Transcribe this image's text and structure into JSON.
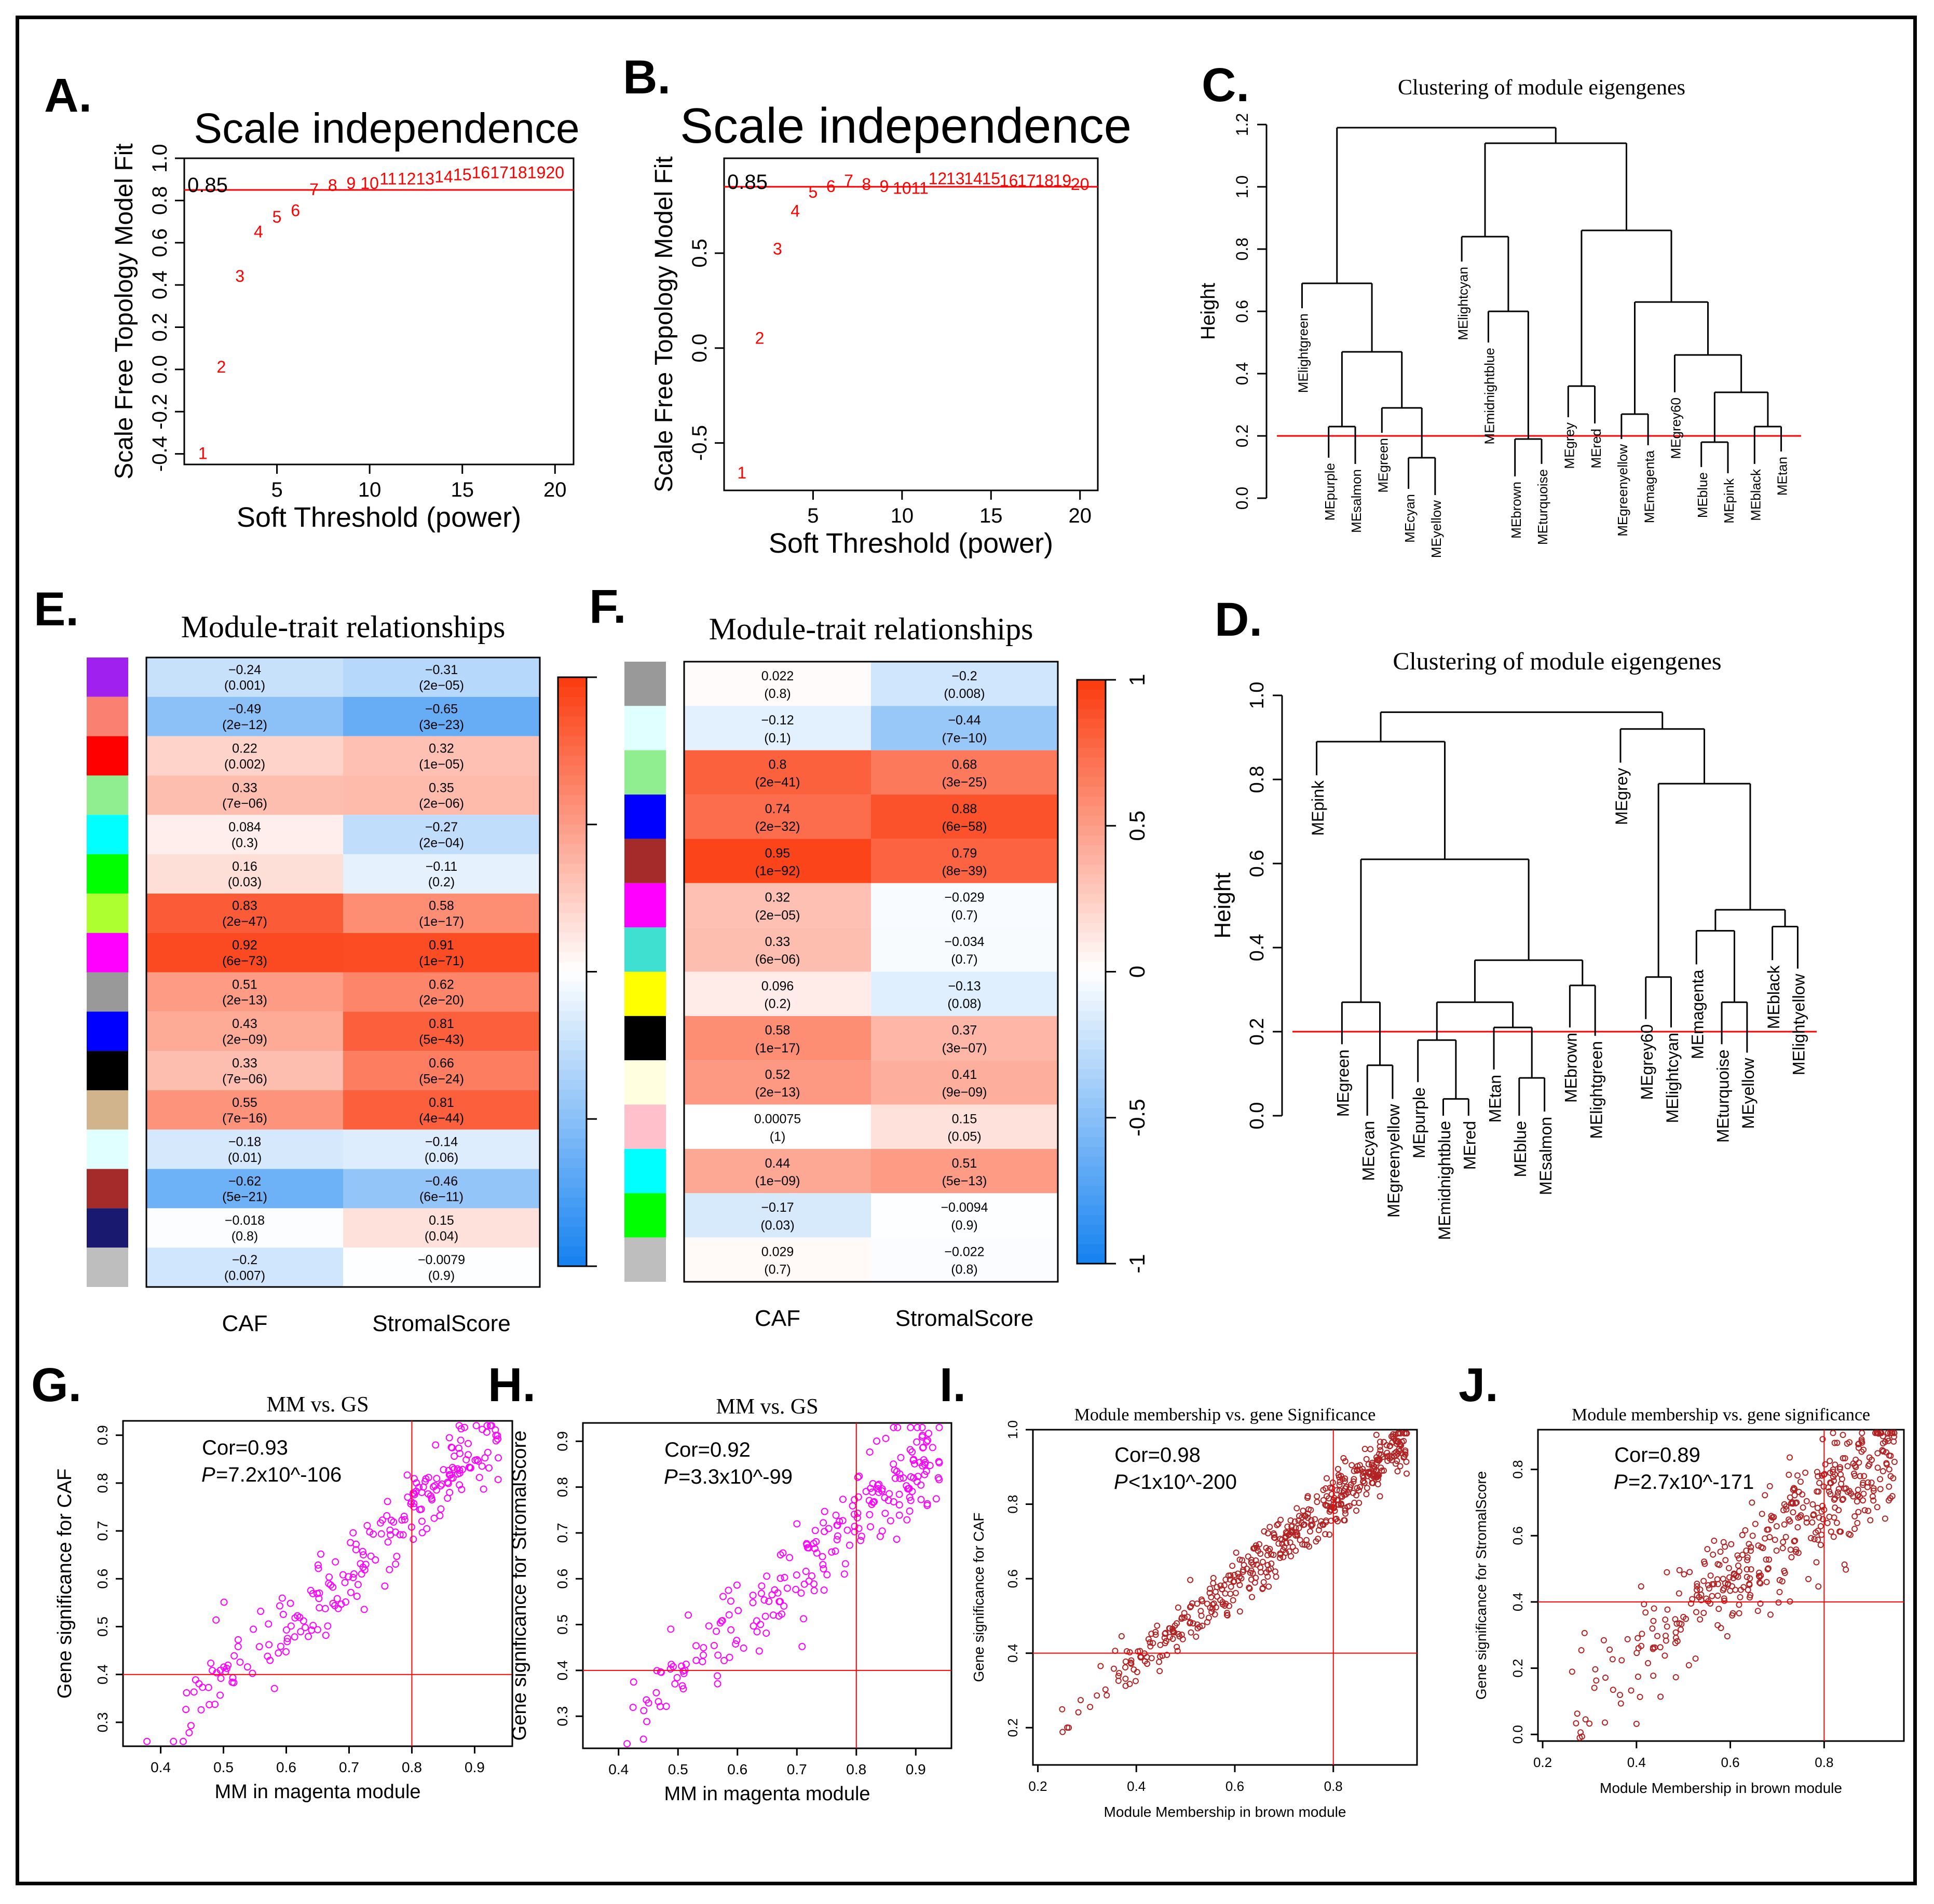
{
  "colors": {
    "red": "#ff0000",
    "magenta": "#ff00ff",
    "brown": "#b22222",
    "hot": "#fb3a0e",
    "mid": "#ffffff",
    "cold": "#1481f0"
  },
  "chart_data": [
    {
      "id": "A",
      "type": "scatter",
      "panel_label": "A.",
      "title": "Scale independence",
      "xlabel": "Soft Threshold (power)",
      "ylabel": "Scale Free Topology Model Fit",
      "xlim": [
        0,
        21
      ],
      "ylim": [
        -0.45,
        1.0
      ],
      "xticks": [
        5,
        10,
        15,
        20
      ],
      "yticks": [
        -0.4,
        -0.2,
        0.0,
        0.2,
        0.4,
        0.6,
        0.8,
        1.0
      ],
      "ytick_labels": [
        "-0.4",
        "-0.2",
        "0.0",
        "0.2",
        "0.4",
        "0.6",
        "0.8",
        "1.0"
      ],
      "threshold": 0.85,
      "threshold_label": "0.85",
      "points": [
        [
          1,
          -0.4
        ],
        [
          2,
          0.01
        ],
        [
          3,
          0.44
        ],
        [
          4,
          0.65
        ],
        [
          5,
          0.72
        ],
        [
          6,
          0.75
        ],
        [
          7,
          0.85
        ],
        [
          8,
          0.87
        ],
        [
          9,
          0.88
        ],
        [
          10,
          0.88
        ],
        [
          11,
          0.9
        ],
        [
          12,
          0.9
        ],
        [
          13,
          0.9
        ],
        [
          14,
          0.91
        ],
        [
          15,
          0.92
        ],
        [
          16,
          0.93
        ],
        [
          17,
          0.93
        ],
        [
          18,
          0.93
        ],
        [
          19,
          0.93
        ],
        [
          20,
          0.93
        ]
      ]
    },
    {
      "id": "B",
      "type": "scatter",
      "panel_label": "B.",
      "title": "Scale independence",
      "xlabel": "Soft Threshold (power)",
      "ylabel": "Scale Free Topology Model Fit",
      "xlim": [
        0,
        21
      ],
      "ylim": [
        -0.75,
        1.0
      ],
      "xticks": [
        5,
        10,
        15,
        20
      ],
      "yticks": [
        -0.5,
        0.0,
        0.5
      ],
      "ytick_labels": [
        "-0.5",
        "0.0",
        "0.5"
      ],
      "threshold": 0.85,
      "threshold_label": "0.85",
      "points": [
        [
          1,
          -0.66
        ],
        [
          2,
          0.05
        ],
        [
          3,
          0.52
        ],
        [
          4,
          0.72
        ],
        [
          5,
          0.82
        ],
        [
          6,
          0.85
        ],
        [
          7,
          0.88
        ],
        [
          8,
          0.86
        ],
        [
          9,
          0.85
        ],
        [
          10,
          0.84
        ],
        [
          11,
          0.84
        ],
        [
          12,
          0.89
        ],
        [
          13,
          0.89
        ],
        [
          14,
          0.89
        ],
        [
          15,
          0.89
        ],
        [
          16,
          0.88
        ],
        [
          17,
          0.88
        ],
        [
          18,
          0.88
        ],
        [
          19,
          0.88
        ],
        [
          20,
          0.86
        ]
      ]
    },
    {
      "id": "C",
      "type": "dendrogram",
      "panel_label": "C.",
      "title": "Clustering of module eigengenes",
      "ylabel": "Height",
      "ylim": [
        0,
        1.2
      ],
      "yticks": [
        0.0,
        0.2,
        0.4,
        0.6,
        0.8,
        1.0,
        1.2
      ],
      "ytick_labels": [
        "0.0",
        "0.2",
        "0.4",
        "0.6",
        "0.8",
        "1.0",
        "1.2"
      ],
      "cut_height": 0.2,
      "leaves": [
        "MElightgreen",
        "MEpurple",
        "MEsalmon",
        "MEgreen",
        "MEcyan",
        "MEyellow",
        "MElightcyan",
        "MEmidnightblue",
        "MEbrown",
        "MEturquoise",
        "MEgrey",
        "MEred",
        "MEgreenyellow",
        "MEmagenta",
        "MEgrey60",
        "MEblue",
        "MEpink",
        "MEblack",
        "MEtan"
      ],
      "merges": [
        [
          2,
          3,
          0.23
        ],
        [
          5,
          6,
          0.13
        ],
        [
          4,
          -2,
          0.29
        ],
        [
          -1,
          -3,
          0.47
        ],
        [
          1,
          -4,
          0.69
        ],
        [
          9,
          10,
          0.19
        ],
        [
          8,
          -6,
          0.6
        ],
        [
          7,
          -7,
          0.84
        ],
        [
          11,
          12,
          0.36
        ],
        [
          13,
          14,
          0.27
        ],
        [
          16,
          17,
          0.18
        ],
        [
          18,
          19,
          0.23
        ],
        [
          -11,
          -12,
          0.34
        ],
        [
          15,
          -13,
          0.46
        ],
        [
          -10,
          -14,
          0.63
        ],
        [
          -9,
          -15,
          0.86
        ],
        [
          -8,
          -16,
          1.14
        ],
        [
          -5,
          -17,
          1.19
        ]
      ]
    },
    {
      "id": "D",
      "type": "dendrogram",
      "panel_label": "D.",
      "title": "Clustering of module eigengenes",
      "ylabel": "Height",
      "ylim": [
        0,
        1.0
      ],
      "yticks": [
        0.0,
        0.2,
        0.4,
        0.6,
        0.8,
        1.0
      ],
      "ytick_labels": [
        "0.0",
        "0.2",
        "0.4",
        "0.6",
        "0.8",
        "1.0"
      ],
      "cut_height": 0.2,
      "leaves": [
        "MEpink",
        "MEgreen",
        "MEcyan",
        "MEgreenyellow",
        "MEpurple",
        "MEmidnightblue",
        "MEred",
        "MEtan",
        "MEblue",
        "MEsalmon",
        "MEbrown",
        "MElightgreen",
        "MEgrey",
        "MEgrey60",
        "MElightcyan",
        "MEmagenta",
        "MEturquoise",
        "MEyellow",
        "MEblack",
        "MElightyellow"
      ],
      "merges": [
        [
          3,
          4,
          0.12
        ],
        [
          2,
          -1,
          0.27
        ],
        [
          6,
          7,
          0.04
        ],
        [
          5,
          -3,
          0.18
        ],
        [
          9,
          10,
          0.09
        ],
        [
          8,
          -5,
          0.21
        ],
        [
          -4,
          -6,
          0.27
        ],
        [
          11,
          12,
          0.31
        ],
        [
          -7,
          -8,
          0.37
        ],
        [
          -2,
          -9,
          0.61
        ],
        [
          1,
          -10,
          0.89
        ],
        [
          14,
          15,
          0.33
        ],
        [
          17,
          18,
          0.27
        ],
        [
          16,
          -13,
          0.44
        ],
        [
          19,
          20,
          0.45
        ],
        [
          -14,
          -15,
          0.49
        ],
        [
          -12,
          -16,
          0.79
        ],
        [
          13,
          -17,
          0.92
        ],
        [
          -11,
          -18,
          0.96
        ]
      ]
    },
    {
      "id": "E",
      "type": "heatmap",
      "panel_label": "E.",
      "title": "Module-trait relationships",
      "columns": [
        "CAF",
        "StromalScore"
      ],
      "colorbar_range": [
        -1,
        1
      ],
      "colorbar_ticks": [],
      "colorbar_tick_labels": [],
      "row_colors": [
        "#a020f0",
        "#fa8072",
        "#ff0000",
        "#90ee90",
        "#00ffff",
        "#00ff00",
        "#adff2f",
        "#ff00ff",
        "#999999",
        "#0000ff",
        "#000000",
        "#d2b48c",
        "#e0ffff",
        "#a52a2a",
        "#191970",
        "#bebebe"
      ],
      "rows": [
        [
          {
            "r": "−0.24",
            "p": "(0.001)",
            "v": -0.24
          },
          {
            "r": "−0.31",
            "p": "(2e−05)",
            "v": -0.31
          }
        ],
        [
          {
            "r": "−0.49",
            "p": "(2e−12)",
            "v": -0.49
          },
          {
            "r": "−0.65",
            "p": "(3e−23)",
            "v": -0.65
          }
        ],
        [
          {
            "r": "0.22",
            "p": "(0.002)",
            "v": 0.22
          },
          {
            "r": "0.32",
            "p": "(1e−05)",
            "v": 0.32
          }
        ],
        [
          {
            "r": "0.33",
            "p": "(7e−06)",
            "v": 0.33
          },
          {
            "r": "0.35",
            "p": "(2e−06)",
            "v": 0.35
          }
        ],
        [
          {
            "r": "0.084",
            "p": "(0.3)",
            "v": 0.084
          },
          {
            "r": "−0.27",
            "p": "(2e−04)",
            "v": -0.27
          }
        ],
        [
          {
            "r": "0.16",
            "p": "(0.03)",
            "v": 0.16
          },
          {
            "r": "−0.11",
            "p": "(0.2)",
            "v": -0.11
          }
        ],
        [
          {
            "r": "0.83",
            "p": "(2e−47)",
            "v": 0.83
          },
          {
            "r": "0.58",
            "p": "(1e−17)",
            "v": 0.58
          }
        ],
        [
          {
            "r": "0.92",
            "p": "(6e−73)",
            "v": 0.92
          },
          {
            "r": "0.91",
            "p": "(1e−71)",
            "v": 0.91
          }
        ],
        [
          {
            "r": "0.51",
            "p": "(2e−13)",
            "v": 0.51
          },
          {
            "r": "0.62",
            "p": "(2e−20)",
            "v": 0.62
          }
        ],
        [
          {
            "r": "0.43",
            "p": "(2e−09)",
            "v": 0.43
          },
          {
            "r": "0.81",
            "p": "(5e−43)",
            "v": 0.81
          }
        ],
        [
          {
            "r": "0.33",
            "p": "(7e−06)",
            "v": 0.33
          },
          {
            "r": "0.66",
            "p": "(5e−24)",
            "v": 0.66
          }
        ],
        [
          {
            "r": "0.55",
            "p": "(7e−16)",
            "v": 0.55
          },
          {
            "r": "0.81",
            "p": "(4e−44)",
            "v": 0.81
          }
        ],
        [
          {
            "r": "−0.18",
            "p": "(0.01)",
            "v": -0.18
          },
          {
            "r": "−0.14",
            "p": "(0.06)",
            "v": -0.14
          }
        ],
        [
          {
            "r": "−0.62",
            "p": "(5e−21)",
            "v": -0.62
          },
          {
            "r": "−0.46",
            "p": "(6e−11)",
            "v": -0.46
          }
        ],
        [
          {
            "r": "−0.018",
            "p": "(0.8)",
            "v": -0.018
          },
          {
            "r": "0.15",
            "p": "(0.04)",
            "v": 0.15
          }
        ],
        [
          {
            "r": "−0.2",
            "p": "(0.007)",
            "v": -0.2
          },
          {
            "r": "−0.0079",
            "p": "(0.9)",
            "v": -0.0079
          }
        ]
      ]
    },
    {
      "id": "F",
      "type": "heatmap",
      "panel_label": "F.",
      "title": "Module-trait relationships",
      "columns": [
        "CAF",
        "StromalScore"
      ],
      "colorbar_range": [
        -1,
        1
      ],
      "colorbar_ticks": [
        1,
        0.5,
        0,
        -0.5,
        -1
      ],
      "colorbar_tick_labels": [
        "1",
        "0.5",
        "0",
        "-0.5",
        "-1"
      ],
      "row_colors": [
        "#999999",
        "#e0ffff",
        "#90ee90",
        "#0000ff",
        "#a52a2a",
        "#ff00ff",
        "#40e0d0",
        "#ffff00",
        "#000000",
        "#ffffe0",
        "#ffc0cb",
        "#00ffff",
        "#00ff00",
        "#bebebe"
      ],
      "rows": [
        [
          {
            "r": "0.022",
            "p": "(0.8)",
            "v": 0.022
          },
          {
            "r": "−0.2",
            "p": "(0.008)",
            "v": -0.2
          }
        ],
        [
          {
            "r": "−0.12",
            "p": "(0.1)",
            "v": -0.12
          },
          {
            "r": "−0.44",
            "p": "(7e−10)",
            "v": -0.44
          }
        ],
        [
          {
            "r": "0.8",
            "p": "(2e−41)",
            "v": 0.8
          },
          {
            "r": "0.68",
            "p": "(3e−25)",
            "v": 0.68
          }
        ],
        [
          {
            "r": "0.74",
            "p": "(2e−32)",
            "v": 0.74
          },
          {
            "r": "0.88",
            "p": "(6e−58)",
            "v": 0.88
          }
        ],
        [
          {
            "r": "0.95",
            "p": "(1e−92)",
            "v": 0.95
          },
          {
            "r": "0.79",
            "p": "(8e−39)",
            "v": 0.79
          }
        ],
        [
          {
            "r": "0.32",
            "p": "(2e−05)",
            "v": 0.32
          },
          {
            "r": "−0.029",
            "p": "(0.7)",
            "v": -0.029
          }
        ],
        [
          {
            "r": "0.33",
            "p": "(6e−06)",
            "v": 0.33
          },
          {
            "r": "−0.034",
            "p": "(0.7)",
            "v": -0.034
          }
        ],
        [
          {
            "r": "0.096",
            "p": "(0.2)",
            "v": 0.096
          },
          {
            "r": "−0.13",
            "p": "(0.08)",
            "v": -0.13
          }
        ],
        [
          {
            "r": "0.58",
            "p": "(1e−17)",
            "v": 0.58
          },
          {
            "r": "0.37",
            "p": "(3e−07)",
            "v": 0.37
          }
        ],
        [
          {
            "r": "0.52",
            "p": "(2e−13)",
            "v": 0.52
          },
          {
            "r": "0.41",
            "p": "(9e−09)",
            "v": 0.41
          }
        ],
        [
          {
            "r": "0.00075",
            "p": "(1)",
            "v": 0.00075
          },
          {
            "r": "0.15",
            "p": "(0.05)",
            "v": 0.15
          }
        ],
        [
          {
            "r": "0.44",
            "p": "(1e−09)",
            "v": 0.44
          },
          {
            "r": "0.51",
            "p": "(5e−13)",
            "v": 0.51
          }
        ],
        [
          {
            "r": "−0.17",
            "p": "(0.03)",
            "v": -0.17
          },
          {
            "r": "−0.0094",
            "p": "(0.9)",
            "v": -0.0094
          }
        ],
        [
          {
            "r": "0.029",
            "p": "(0.7)",
            "v": 0.029
          },
          {
            "r": "−0.022",
            "p": "(0.8)",
            "v": -0.022
          }
        ]
      ]
    },
    {
      "id": "G",
      "type": "scatter",
      "panel_label": "G.",
      "title": "MM vs. GS",
      "xlabel": "MM in magenta module",
      "ylabel": "Gene significance for CAF",
      "xlim": [
        0.34,
        0.96
      ],
      "ylim": [
        0.25,
        0.93
      ],
      "xticks": [
        0.4,
        0.5,
        0.6,
        0.7,
        0.8,
        0.9
      ],
      "xtick_labels": [
        "0.4",
        "0.5",
        "0.6",
        "0.7",
        "0.8",
        "0.9"
      ],
      "yticks": [
        0.3,
        0.4,
        0.5,
        0.6,
        0.7,
        0.8,
        0.9
      ],
      "ytick_labels": [
        "0.3",
        "0.4",
        "0.5",
        "0.6",
        "0.7",
        "0.8",
        "0.9"
      ],
      "vline": 0.8,
      "hline": 0.4,
      "cor_label": "Cor=0.93",
      "p_label": "P",
      "p_value": "=7.2x10^-106",
      "n_points": 230,
      "trend": {
        "slope": 1.16,
        "intercept": -0.19,
        "noise": 0.045,
        "seed": 11
      }
    },
    {
      "id": "H",
      "type": "scatter",
      "panel_label": "H.",
      "title": "MM vs. GS",
      "xlabel": "MM in magenta module",
      "ylabel": "Gene significance for StromalScore",
      "xlim": [
        0.34,
        0.96
      ],
      "ylim": [
        0.23,
        0.94
      ],
      "xticks": [
        0.4,
        0.5,
        0.6,
        0.7,
        0.8,
        0.9
      ],
      "xtick_labels": [
        "0.4",
        "0.5",
        "0.6",
        "0.7",
        "0.8",
        "0.9"
      ],
      "yticks": [
        0.3,
        0.4,
        0.5,
        0.6,
        0.7,
        0.8,
        0.9
      ],
      "ytick_labels": [
        "0.3",
        "0.4",
        "0.5",
        "0.6",
        "0.7",
        "0.8",
        "0.9"
      ],
      "vline": 0.8,
      "hline": 0.4,
      "cor_label": "Cor=0.92",
      "p_label": "P",
      "p_value": "=3.3x10^-99",
      "n_points": 230,
      "trend": {
        "slope": 1.12,
        "intercept": -0.16,
        "noise": 0.05,
        "seed": 23
      }
    },
    {
      "id": "I",
      "type": "scatter",
      "panel_label": "I.",
      "title": "Module membership vs. gene Significance",
      "xlabel": "Module Membership in brown module",
      "ylabel": "Gene significance for CAF",
      "xlim": [
        0.19,
        0.97
      ],
      "ylim": [
        0.1,
        1.0
      ],
      "xticks": [
        0.2,
        0.4,
        0.6,
        0.8
      ],
      "xtick_labels": [
        "0.2",
        "0.4",
        "0.6",
        "0.8"
      ],
      "yticks": [
        0.2,
        0.4,
        0.6,
        0.8,
        1.0
      ],
      "ytick_labels": [
        "0.2",
        "0.4",
        "0.6",
        "0.8",
        "1.0"
      ],
      "vline": 0.8,
      "hline": 0.4,
      "cor_label": "Cor=0.98",
      "p_label": "P",
      "p_value": "<1x10^-200",
      "n_points": 480,
      "trend": {
        "slope": 1.08,
        "intercept": -0.06,
        "noise": 0.035,
        "seed": 37
      }
    },
    {
      "id": "J",
      "type": "scatter",
      "panel_label": "J.",
      "title": "Module membership vs. gene significance",
      "xlabel": "Module Membership in brown module",
      "ylabel": "Gene significance for StromalScore",
      "xlim": [
        0.19,
        0.97
      ],
      "ylim": [
        -0.02,
        0.92
      ],
      "xticks": [
        0.2,
        0.4,
        0.6,
        0.8
      ],
      "xtick_labels": [
        "0.2",
        "0.4",
        "0.6",
        "0.8"
      ],
      "yticks": [
        0.0,
        0.2,
        0.4,
        0.6,
        0.8
      ],
      "ytick_labels": [
        "0.0",
        "0.2",
        "0.4",
        "0.6",
        "0.8"
      ],
      "vline": 0.8,
      "hline": 0.4,
      "cor_label": "Cor=0.89",
      "p_label": "P",
      "p_value": "=2.7x10^-171",
      "n_points": 420,
      "trend": {
        "slope": 1.15,
        "intercept": -0.22,
        "noise": 0.09,
        "seed": 53
      }
    }
  ]
}
